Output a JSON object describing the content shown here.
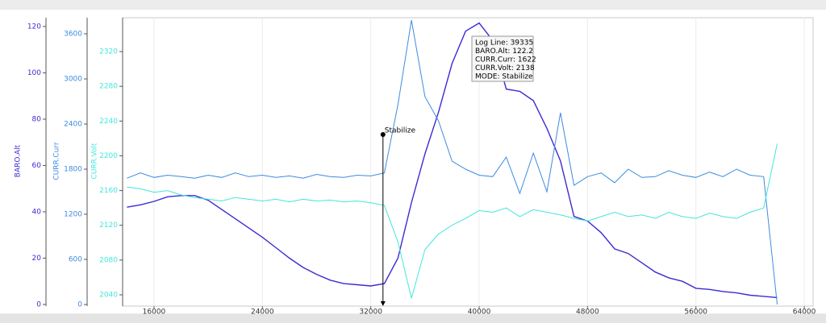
{
  "chart_data": {
    "type": "line",
    "x": [
      14000,
      15000,
      16000,
      17000,
      18000,
      19000,
      20000,
      21000,
      22000,
      23000,
      24000,
      25000,
      26000,
      27000,
      28000,
      29000,
      30000,
      31000,
      32000,
      33000,
      34000,
      35000,
      36000,
      37000,
      38000,
      39000,
      40000,
      41000,
      42000,
      43000,
      44000,
      45000,
      46000,
      47000,
      48000,
      49000,
      50000,
      51000,
      52000,
      53000,
      54000,
      55000,
      56000,
      57000,
      58000,
      59000,
      60000,
      61000,
      62000
    ],
    "xlim": [
      13680,
      64650
    ],
    "xticks": [
      16000,
      24000,
      32000,
      40000,
      48000,
      56000,
      64000
    ],
    "grid": true,
    "series": [
      {
        "name": "BARO.Alt",
        "color": "#3b2bd4",
        "ylim": [
          -0.7,
          123.8
        ],
        "yticks": [
          0,
          20,
          40,
          60,
          80,
          100,
          120
        ],
        "values": [
          42,
          43,
          44.5,
          46.5,
          47,
          47,
          45,
          41,
          37,
          33,
          29,
          24.5,
          20,
          16,
          13,
          10.5,
          9,
          8.5,
          8,
          9,
          20,
          44,
          65,
          83,
          104,
          118,
          121.5,
          114,
          93,
          92,
          88,
          76,
          62,
          38,
          36,
          31,
          24,
          22,
          18,
          14,
          11.5,
          10,
          7,
          6.5,
          5.6,
          5,
          4,
          3.5,
          3
        ]
      },
      {
        "name": "CURR.Curr",
        "color": "#3d8be0",
        "ylim": [
          -21,
          3814
        ],
        "yticks": [
          0,
          600,
          1200,
          1800,
          2400,
          3000,
          3600
        ],
        "values": [
          1680,
          1750,
          1690,
          1720,
          1700,
          1680,
          1720,
          1690,
          1750,
          1700,
          1720,
          1690,
          1710,
          1680,
          1730,
          1700,
          1690,
          1720,
          1710,
          1750,
          2657,
          3782,
          2764,
          2443,
          1907,
          1800,
          1720,
          1700,
          1960,
          1478,
          2014,
          1500,
          2550,
          1586,
          1700,
          1750,
          1620,
          1800,
          1690,
          1700,
          1780,
          1720,
          1690,
          1760,
          1700,
          1800,
          1720,
          1700,
          0
        ]
      },
      {
        "name": "CURR.Volt",
        "color": "#43e5dc",
        "ylim": [
          2027,
          2359
        ],
        "yticks": [
          2040,
          2080,
          2120,
          2160,
          2200,
          2240,
          2280,
          2320
        ],
        "values": [
          2164,
          2162,
          2158,
          2160,
          2155,
          2152,
          2150,
          2148,
          2152,
          2150,
          2148,
          2150,
          2147,
          2150,
          2148,
          2149,
          2147,
          2148,
          2146,
          2143,
          2101,
          2036,
          2092,
          2110,
          2120,
          2128,
          2137,
          2135,
          2140,
          2130,
          2138,
          2135,
          2132,
          2128,
          2125,
          2130,
          2135,
          2130,
          2132,
          2128,
          2135,
          2130,
          2128,
          2134,
          2130,
          2128,
          2135,
          2140,
          2214
        ]
      }
    ],
    "annotation": {
      "text": "Stabilize",
      "x": 32900
    },
    "tooltip": [
      "Log Line: 39335",
      "BARO.Alt: 122.2",
      "CURR.Curr: 1622",
      "CURR.Volt: 2138",
      "MODE: Stabilize"
    ]
  }
}
